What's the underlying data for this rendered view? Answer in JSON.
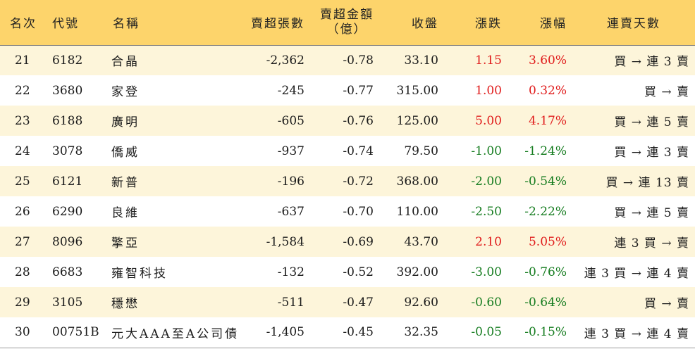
{
  "headers": {
    "rank": "名次",
    "code": "代號",
    "name": "名稱",
    "net_sell_lots": "賣超張數",
    "net_sell_amount_line1": "賣超金額",
    "net_sell_amount_line2": "（億）",
    "close": "收盤",
    "change": "漲跌",
    "change_pct": "漲幅",
    "streak": "連賣天數"
  },
  "colors": {
    "header_bg": "#fdd46b",
    "odd_row_bg": "#fdf5da",
    "up": "#e01b1b",
    "down": "#157c1f"
  },
  "rows": [
    {
      "rank": "21",
      "code": "6182",
      "name": "合晶",
      "lots": "-2,362",
      "amount": "-0.78",
      "close": "33.10",
      "change": "1.15",
      "pct": "3.60%",
      "dir": "up",
      "streak": "買 → 連 3 賣"
    },
    {
      "rank": "22",
      "code": "3680",
      "name": "家登",
      "lots": "-245",
      "amount": "-0.77",
      "close": "315.00",
      "change": "1.00",
      "pct": "0.32%",
      "dir": "up",
      "streak": "買 → 賣"
    },
    {
      "rank": "23",
      "code": "6188",
      "name": "廣明",
      "lots": "-605",
      "amount": "-0.76",
      "close": "125.00",
      "change": "5.00",
      "pct": "4.17%",
      "dir": "up",
      "streak": "買 → 連 5 賣"
    },
    {
      "rank": "24",
      "code": "3078",
      "name": "僑威",
      "lots": "-937",
      "amount": "-0.74",
      "close": "79.50",
      "change": "-1.00",
      "pct": "-1.24%",
      "dir": "down",
      "streak": "買 → 連 3 賣"
    },
    {
      "rank": "25",
      "code": "6121",
      "name": "新普",
      "lots": "-196",
      "amount": "-0.72",
      "close": "368.00",
      "change": "-2.00",
      "pct": "-0.54%",
      "dir": "down",
      "streak": "買 → 連 13 賣"
    },
    {
      "rank": "26",
      "code": "6290",
      "name": "良維",
      "lots": "-637",
      "amount": "-0.70",
      "close": "110.00",
      "change": "-2.50",
      "pct": "-2.22%",
      "dir": "down",
      "streak": "買 → 連 5 賣"
    },
    {
      "rank": "27",
      "code": "8096",
      "name": "擎亞",
      "lots": "-1,584",
      "amount": "-0.69",
      "close": "43.70",
      "change": "2.10",
      "pct": "5.05%",
      "dir": "up",
      "streak": "連 3 買 → 賣"
    },
    {
      "rank": "28",
      "code": "6683",
      "name": "雍智科技",
      "lots": "-132",
      "amount": "-0.52",
      "close": "392.00",
      "change": "-3.00",
      "pct": "-0.76%",
      "dir": "down",
      "streak": "連 3 買 → 連 4 賣"
    },
    {
      "rank": "29",
      "code": "3105",
      "name": "穩懋",
      "lots": "-511",
      "amount": "-0.47",
      "close": "92.60",
      "change": "-0.60",
      "pct": "-0.64%",
      "dir": "down",
      "streak": "買 → 賣"
    },
    {
      "rank": "30",
      "code": "00751B",
      "name": "元大AAA至A公司債",
      "lots": "-1,405",
      "amount": "-0.45",
      "close": "32.35",
      "change": "-0.05",
      "pct": "-0.15%",
      "dir": "down",
      "streak": "連 3 買 → 連 4 賣"
    }
  ]
}
